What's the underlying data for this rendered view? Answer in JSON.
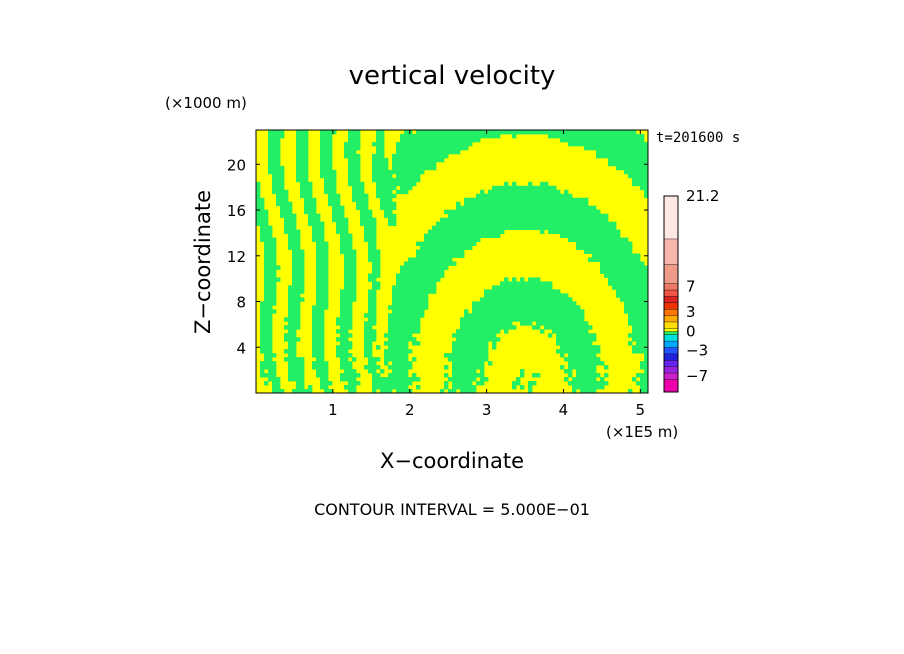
{
  "chart_data": {
    "type": "heatmap",
    "title": "vertical velocity",
    "xlabel": "X−coordinate",
    "ylabel": "Z−coordinate",
    "x_unit": "(×1E5 m)",
    "y_unit": "(×1000 m)",
    "time_label": "t=201600 s",
    "footer": "CONTOUR INTERVAL = 5.000E−01",
    "xlim": [
      0,
      5.1
    ],
    "ylim": [
      0,
      23
    ],
    "x_ticks": [
      {
        "value": 1,
        "label": "1"
      },
      {
        "value": 2,
        "label": "2"
      },
      {
        "value": 3,
        "label": "3"
      },
      {
        "value": 4,
        "label": "4"
      },
      {
        "value": 5,
        "label": "5"
      }
    ],
    "y_ticks": [
      {
        "value": 4,
        "label": "4"
      },
      {
        "value": 8,
        "label": "8"
      },
      {
        "value": 12,
        "label": "12"
      },
      {
        "value": 16,
        "label": "16"
      },
      {
        "value": 20,
        "label": "20"
      }
    ],
    "field_colors": {
      "positive": "#ffff00",
      "negative": "#22ee66"
    },
    "colorbar": {
      "min": -9.5,
      "max": 21.2,
      "bands": [
        {
          "from": -9.5,
          "to": -7.5,
          "color": "#ee00aa"
        },
        {
          "from": -7.5,
          "to": -6.5,
          "color": "#cc22cc"
        },
        {
          "from": -6.5,
          "to": -5.5,
          "color": "#9922dd"
        },
        {
          "from": -5.5,
          "to": -4.5,
          "color": "#6622ee"
        },
        {
          "from": -4.5,
          "to": -3.5,
          "color": "#2222dd"
        },
        {
          "from": -3.5,
          "to": -2.5,
          "color": "#2255ff"
        },
        {
          "from": -2.5,
          "to": -1.5,
          "color": "#00aaff"
        },
        {
          "from": -1.5,
          "to": -0.5,
          "color": "#00dddd"
        },
        {
          "from": -0.5,
          "to": 0.0,
          "color": "#22ee66"
        },
        {
          "from": 0.0,
          "to": 0.5,
          "color": "#ffff00"
        },
        {
          "from": 0.5,
          "to": 1.5,
          "color": "#ffdd00"
        },
        {
          "from": 1.5,
          "to": 2.5,
          "color": "#ffaa00"
        },
        {
          "from": 2.5,
          "to": 3.5,
          "color": "#ff7700"
        },
        {
          "from": 3.5,
          "to": 4.5,
          "color": "#ee3300"
        },
        {
          "from": 4.5,
          "to": 5.5,
          "color": "#dd2222"
        },
        {
          "from": 5.5,
          "to": 6.5,
          "color": "#ee5544"
        },
        {
          "from": 6.5,
          "to": 7.5,
          "color": "#ee7766"
        },
        {
          "from": 7.5,
          "to": 10.5,
          "color": "#f09a8a"
        },
        {
          "from": 10.5,
          "to": 14.5,
          "color": "#f6b6aa"
        },
        {
          "from": 14.5,
          "to": 21.2,
          "color": "#fde8e4"
        }
      ],
      "labels": [
        {
          "value": 21.2,
          "label": "21.2"
        },
        {
          "value": 7,
          "label": "7"
        },
        {
          "value": 3,
          "label": "3"
        },
        {
          "value": 0,
          "label": "0"
        },
        {
          "value": -3,
          "label": "−3"
        },
        {
          "value": -7,
          "label": "−7"
        }
      ]
    }
  }
}
